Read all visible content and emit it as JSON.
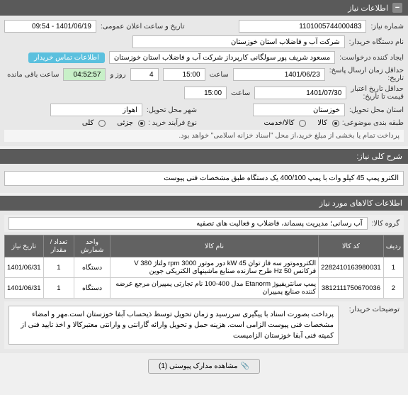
{
  "header": {
    "title": "اطلاعات نیاز"
  },
  "form": {
    "need_no_label": "شماره نیاز:",
    "need_no": "1101005744000483",
    "announce_label": "تاریخ و ساعت اعلان عمومی:",
    "announce_value": "1401/06/19 - 09:54",
    "buyer_label": "نام دستگاه خریدار:",
    "buyer_value": "شرکت آب و فاضلاب استان خوزستان",
    "creator_label": "ایجاد کننده درخواست:",
    "creator_value": "مسعود شریف پور سولگانی کارپرداز شرکت آب و فاضلاب استان خوزستان",
    "contact_btn": "اطلاعات تماس خریدار",
    "deadline_label": "حداقل زمان ارسال پاسخ:\nتاریخ:",
    "deadline_date": "1401/06/23",
    "saat1": "ساعت",
    "deadline_time": "15:00",
    "rooz": "روز و",
    "days_left": "4",
    "remain_time": "04:52:57",
    "remain_label": "ساعت باقی مانده",
    "validity_label": "حداقل تاریخ اعتبار\nقیمت تا تاریخ:",
    "validity_date": "1401/07/30",
    "validity_time": "15:00",
    "prov_label": "استان محل تحویل:",
    "prov_value": "خوزستان",
    "city_label": "شهر محل تحویل:",
    "city_value": "اهواز",
    "cat_label": "طبقه بندی موضوعی:",
    "cat_kala": "کالا",
    "cat_khadamat": "کالا/خدمت",
    "buy_type_label": "نوع فرآیند خرید :",
    "buy_type_partial": "جزئی",
    "buy_type_full": "کلی",
    "payment_note": "پرداخت تمام یا بخشی از مبلغ خرید،از محل \"اسناد خزانه اسلامی\" خواهد بود."
  },
  "sharh": {
    "header": "شرح کلی نیاز:",
    "text": "الکترو پمپ 45 کیلو وات با پمپ 400/100 یک دستگاه طبق مشخصات فنی پیوست"
  },
  "goods": {
    "header": "اطلاعات کالاهای مورد نیاز",
    "group_label": "گروه کالا:",
    "group_value": "آب رسانی؛ مدیریت پسماند، فاضلاب و فعالیت های تصفیه",
    "cols": {
      "row": "ردیف",
      "code": "کد کالا",
      "name": "نام کالا",
      "unit": "واحد شمارش",
      "qty": "تعداد / مقدار",
      "date": "تاریخ نیاز"
    },
    "rows": [
      {
        "n": "1",
        "code": "2282410163980031",
        "name": "الکتروموتور سه فاز توان kW 45 دور موتور rpm 3000 ولتاژ 380 V فرکانس Hz 50 طرح سازنده صنایع ماشینهای الکتریکی جوین",
        "unit": "دستگاه",
        "qty": "1",
        "date": "1401/06/31"
      },
      {
        "n": "2",
        "code": "3812111750670036",
        "name": "پمپ سانتریفیوژ Etanorm مدل 400-100 نام تجارتی پمپیران مرجع عرضه کننده صنایع پمپیران",
        "unit": "دستگاه",
        "qty": "1",
        "date": "1401/06/31"
      }
    ]
  },
  "desc": {
    "label": "توضیحات خریدار:",
    "text": "پرداخت بصورت اسناد با پیگیری  سررسید و زمان تحویل توسط ذیحساب آبفا خوزستان است.مهر و امضاء مشخصات فنی پیوست الزامی است. هزینه حمل و تحویل وارائه گارانتی و وارانتی معتبرکالا و اخذ تایید فنی از کمیته فنی آبفا خوزستان الزامیست"
  },
  "footer": {
    "btn": "مشاهده مدارک پیوستی (1)"
  }
}
